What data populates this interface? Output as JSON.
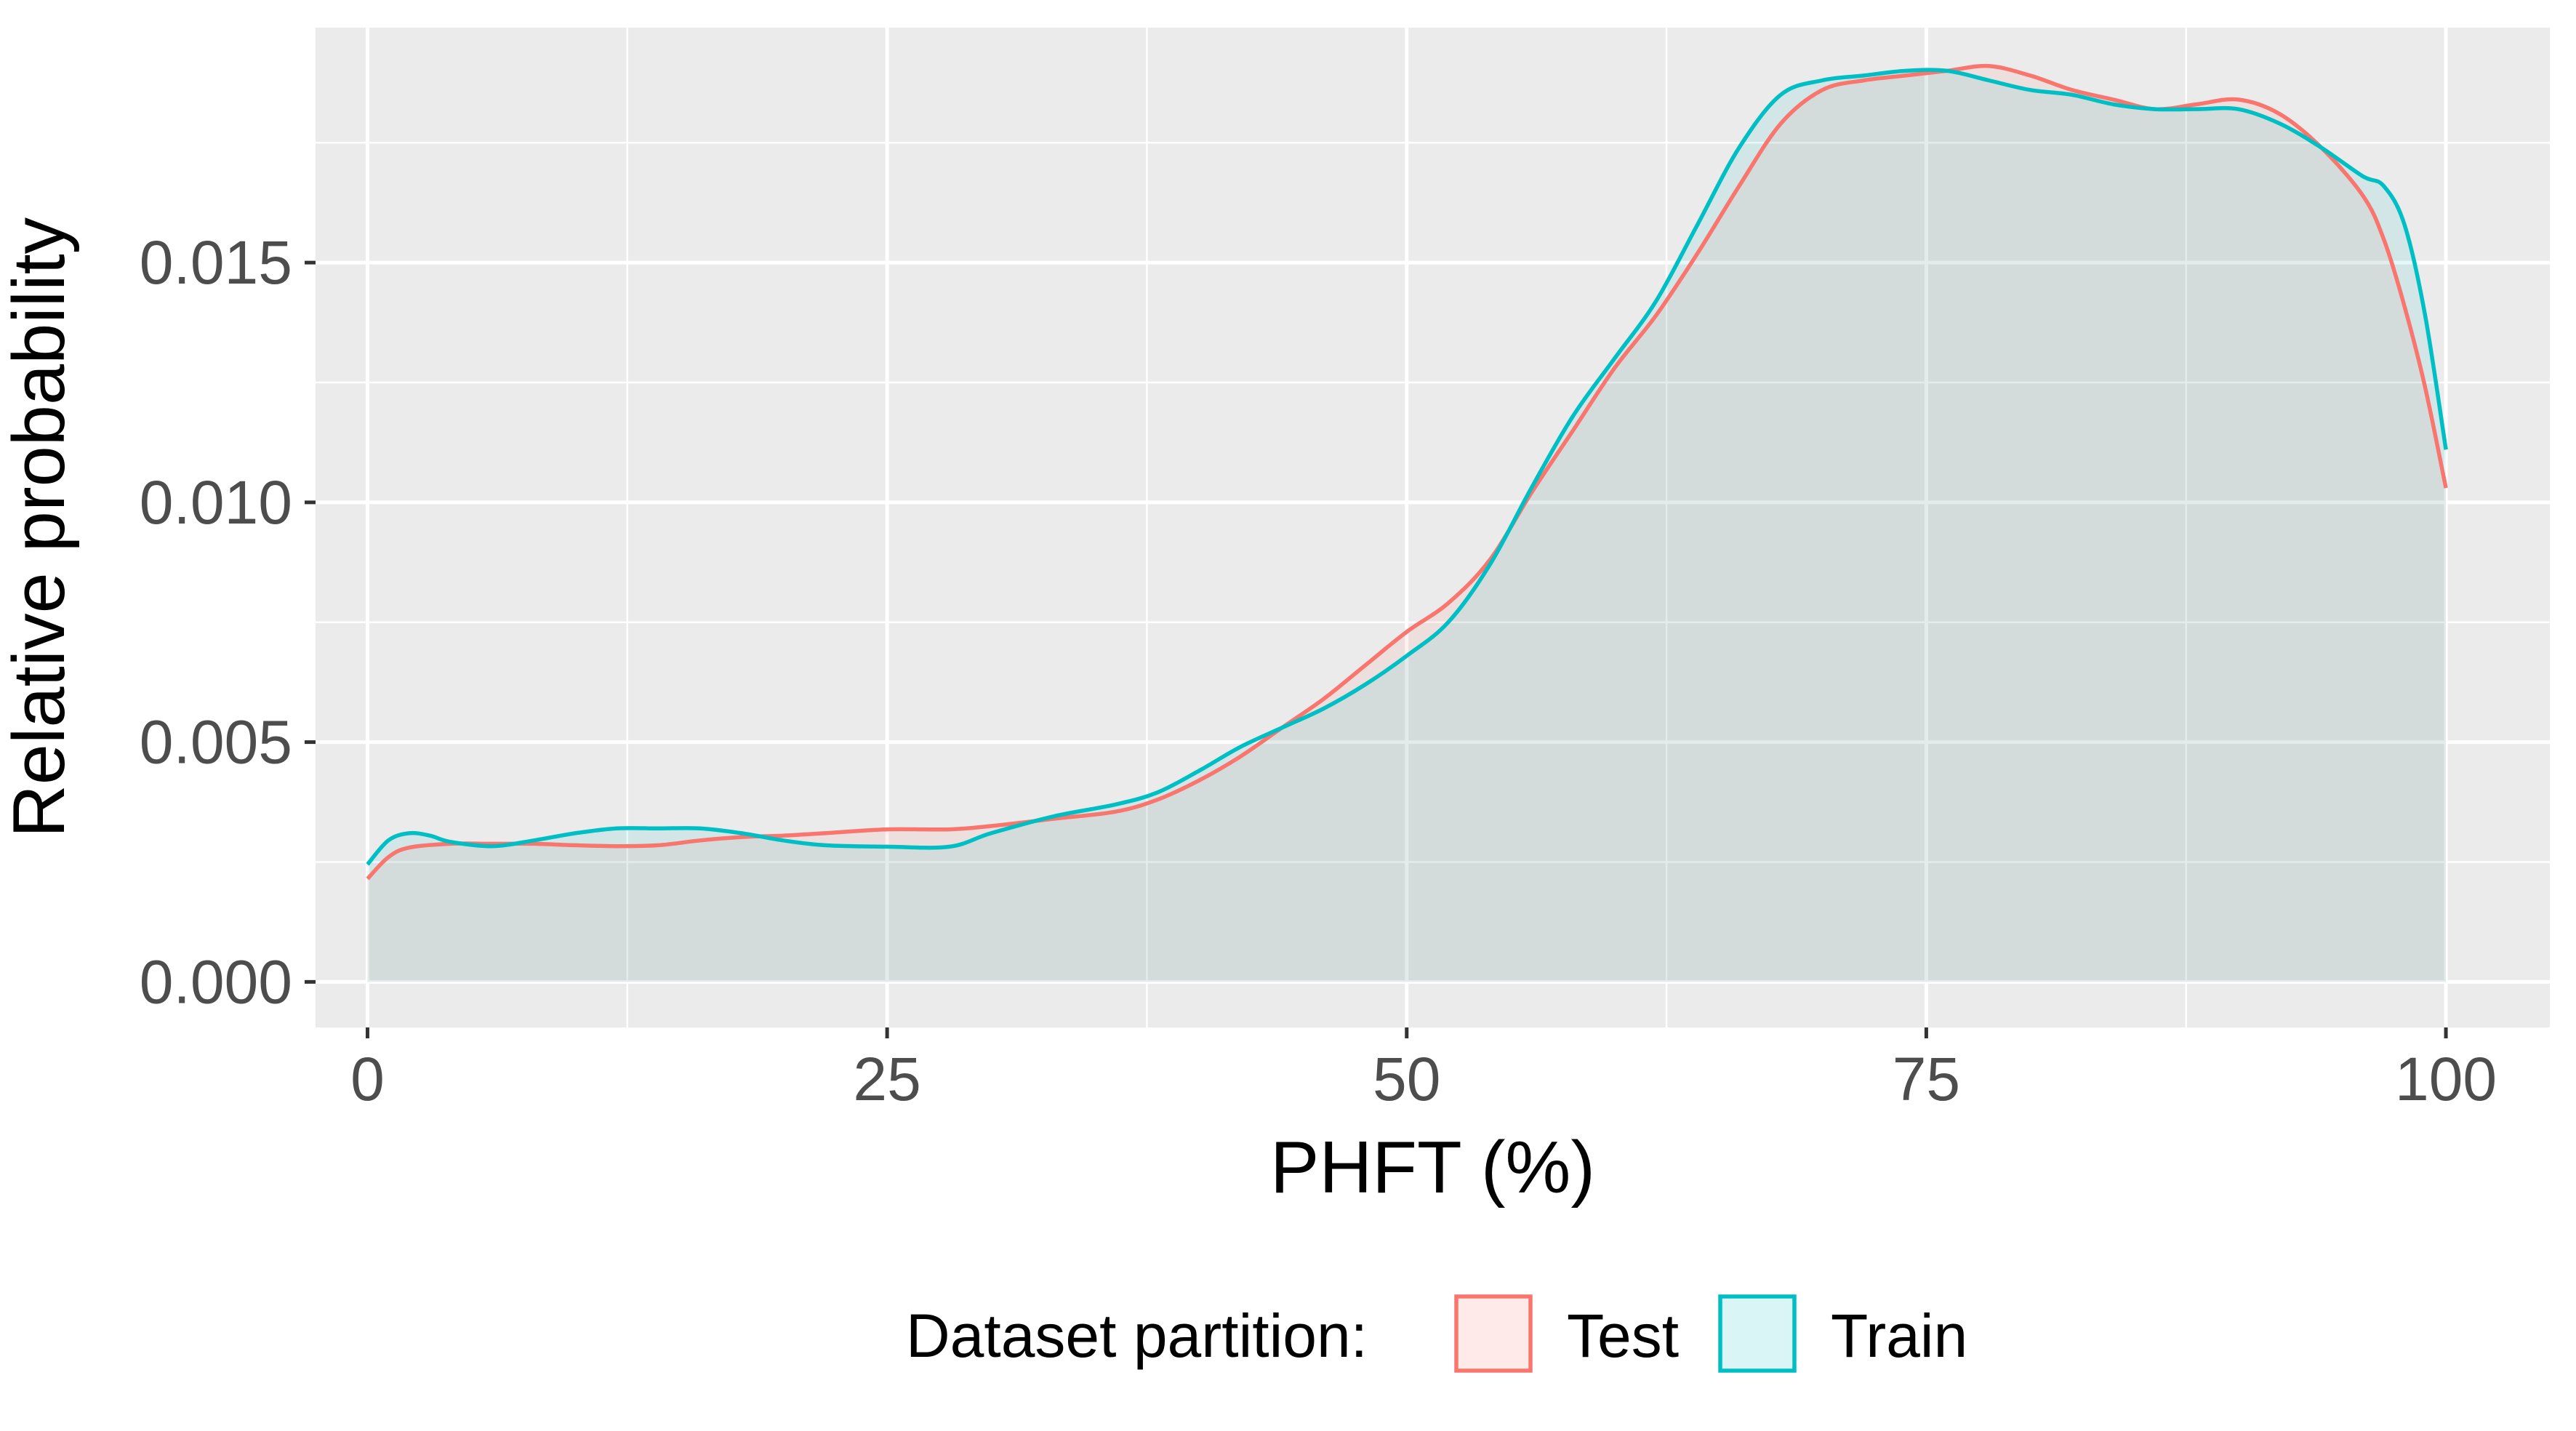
{
  "chart_data": {
    "type": "area",
    "xlabel": "PHFT (%)",
    "ylabel": "Relative probability",
    "xlim": [
      -2.5,
      105
    ],
    "ylim": [
      -0.00095,
      0.0199
    ],
    "xticks": [
      0,
      25,
      50,
      75,
      100
    ],
    "xtick_labels": [
      "0",
      "25",
      "50",
      "75",
      "100"
    ],
    "yticks": [
      0,
      0.005,
      0.01,
      0.015
    ],
    "ytick_labels": [
      "0.000",
      "0.005",
      "0.010",
      "0.015"
    ],
    "grid": true,
    "legend": {
      "title": "Dataset partition:",
      "placement": "bottom",
      "entries": [
        "Test",
        "Train"
      ]
    },
    "colors": {
      "Test": "#F8766D",
      "Train": "#00BFC4",
      "panel_bg": "#EBEBEB",
      "grid": "#FFFFFF"
    },
    "series": [
      {
        "name": "Test",
        "x": [
          0,
          1,
          2,
          4,
          6,
          8,
          10,
          12,
          14,
          16,
          18,
          20,
          22,
          25,
          28,
          30,
          33,
          36,
          38,
          40,
          42,
          44,
          46,
          48,
          50,
          52,
          54,
          56,
          58,
          60,
          62,
          64,
          66,
          68,
          70,
          72,
          74,
          76,
          78,
          80,
          82,
          84,
          86,
          88,
          90,
          92,
          94,
          96,
          97,
          98,
          99,
          100
        ],
        "y": [
          0.00215,
          0.0026,
          0.0028,
          0.00288,
          0.00288,
          0.00288,
          0.00285,
          0.00283,
          0.00285,
          0.00295,
          0.00302,
          0.00305,
          0.0031,
          0.00318,
          0.00318,
          0.00325,
          0.0034,
          0.00355,
          0.0038,
          0.0042,
          0.0047,
          0.0053,
          0.0059,
          0.0066,
          0.0073,
          0.0079,
          0.0088,
          0.0102,
          0.0115,
          0.0128,
          0.0139,
          0.0152,
          0.0166,
          0.0179,
          0.0186,
          0.0188,
          0.0189,
          0.019,
          0.0191,
          0.0189,
          0.0186,
          0.0184,
          0.0182,
          0.0183,
          0.0184,
          0.0181,
          0.0174,
          0.0164,
          0.0155,
          0.0141,
          0.0124,
          0.0103
        ]
      },
      {
        "name": "Train",
        "x": [
          0,
          1,
          2,
          3,
          4,
          6,
          8,
          10,
          12,
          14,
          16,
          18,
          20,
          22,
          25,
          28,
          30,
          33,
          36,
          38,
          40,
          42,
          44,
          46,
          48,
          50,
          52,
          54,
          56,
          58,
          60,
          62,
          64,
          66,
          68,
          70,
          72,
          74,
          76,
          78,
          80,
          82,
          84,
          86,
          88,
          90,
          92,
          94,
          96,
          97,
          98,
          99,
          100
        ],
        "y": [
          0.00245,
          0.00295,
          0.0031,
          0.00305,
          0.00292,
          0.00283,
          0.00295,
          0.0031,
          0.0032,
          0.0032,
          0.0032,
          0.0031,
          0.00295,
          0.00285,
          0.00282,
          0.00282,
          0.0031,
          0.00345,
          0.0037,
          0.00395,
          0.0044,
          0.0049,
          0.0053,
          0.0057,
          0.0062,
          0.0068,
          0.0075,
          0.0087,
          0.0103,
          0.0118,
          0.013,
          0.0142,
          0.0158,
          0.0174,
          0.0185,
          0.0188,
          0.0189,
          0.019,
          0.019,
          0.0188,
          0.0186,
          0.0185,
          0.0183,
          0.0182,
          0.0182,
          0.0182,
          0.0179,
          0.0174,
          0.0168,
          0.0166,
          0.0158,
          0.0139,
          0.0111
        ]
      }
    ]
  }
}
